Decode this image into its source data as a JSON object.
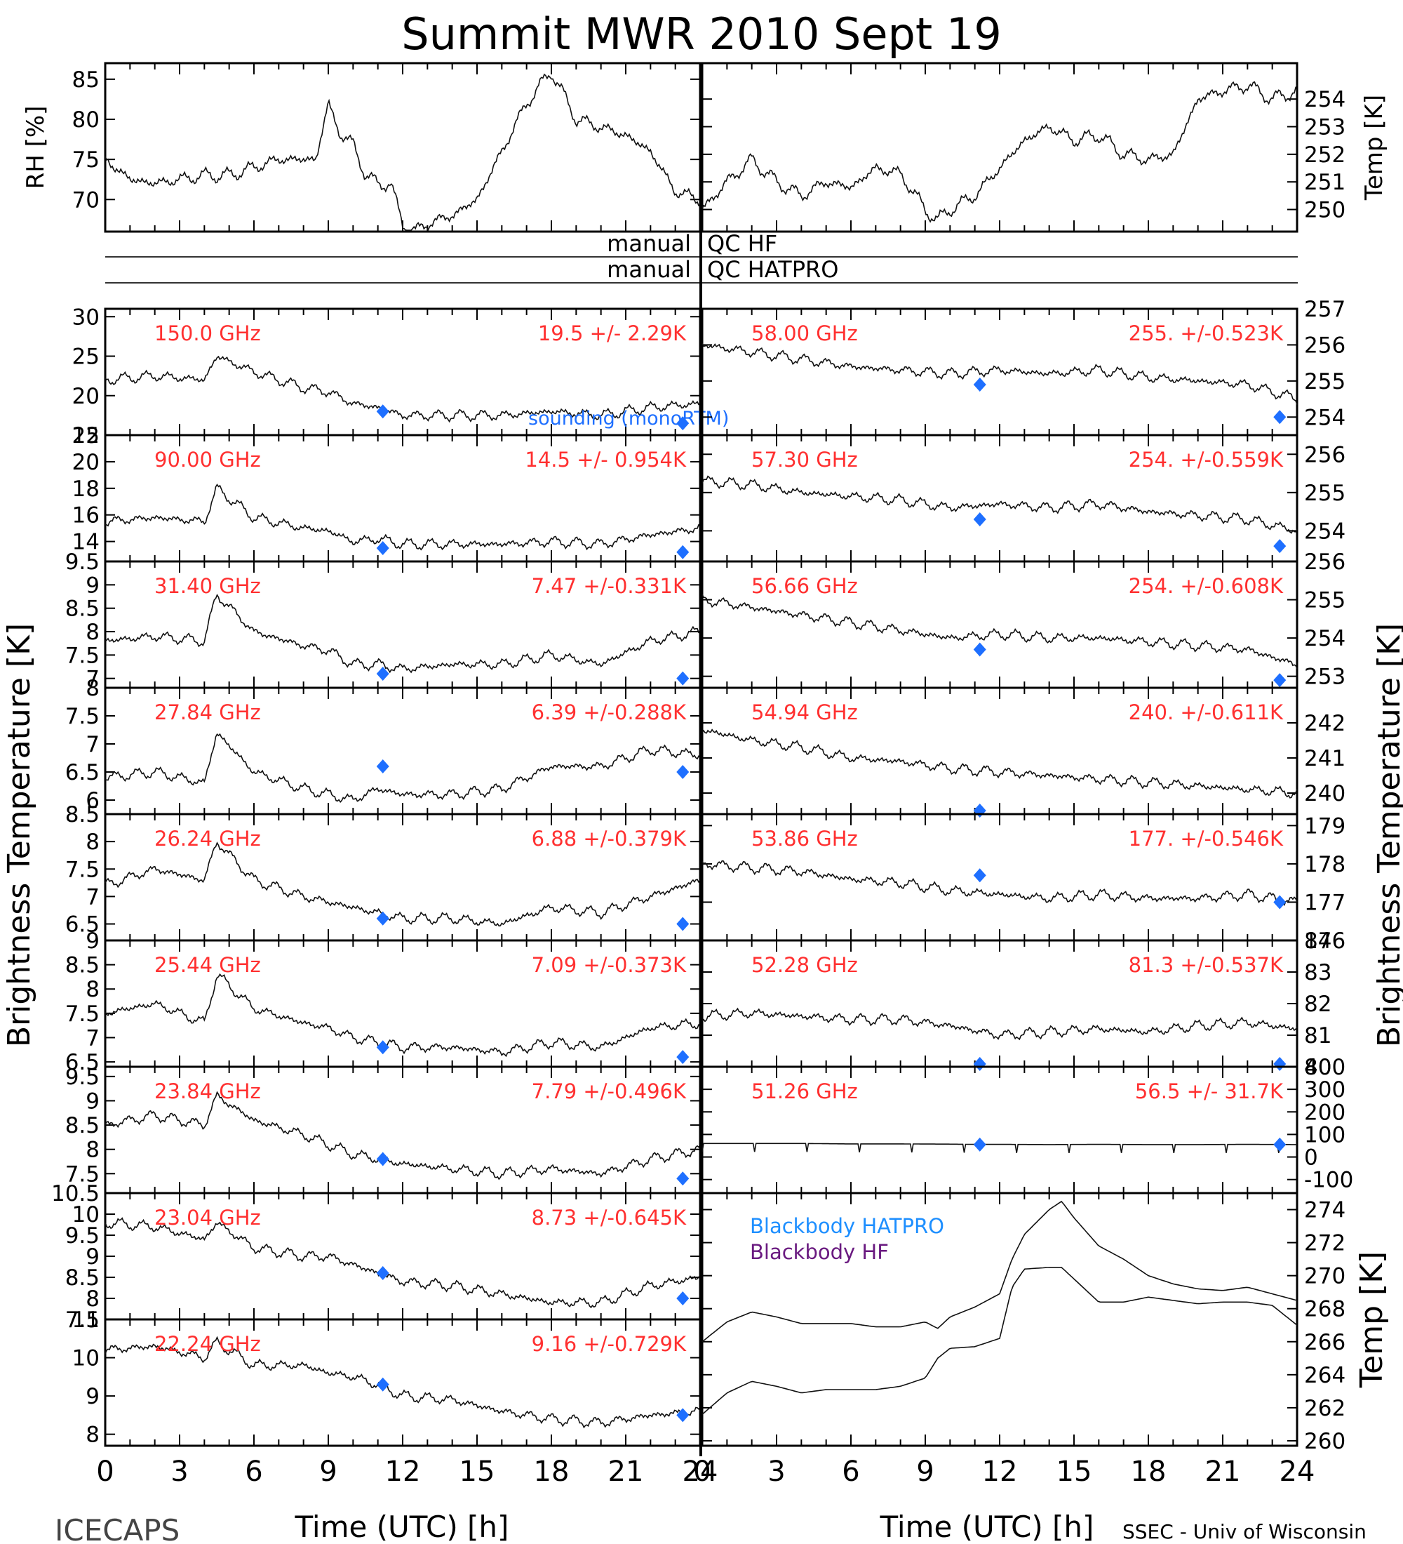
{
  "title": "Summit MWR 2010 Sept 19",
  "left_label": "ICECAPS",
  "right_label": "SSEC - Univ of Wisconsin",
  "xlabel": "Time (UTC) [h]",
  "ylabel_left": "Brightness Temperature [K]",
  "ylabel_right": "Brightness Temperature [K]",
  "qc_rows": [
    {
      "left": "manual",
      "right": "QC HF"
    },
    {
      "left": "manual",
      "right": "QC HATPRO"
    }
  ],
  "colors": {
    "annotation": "#ff3030",
    "marker": "#1e6fff",
    "hatpro": "#1e8fff",
    "hf": "#6a1a80"
  },
  "chart_data": [
    {
      "id": "rh",
      "type": "line",
      "ylabel": "RH [%]",
      "ylim": [
        66,
        87
      ],
      "yticks": [
        70,
        75,
        80,
        85
      ],
      "xlim": [
        0,
        24
      ],
      "x": [
        0,
        1,
        2,
        3,
        4,
        5,
        6,
        7,
        8,
        8.5,
        9,
        9.5,
        10,
        10.5,
        11,
        11.5,
        12,
        12.5,
        13,
        14,
        15,
        16,
        17,
        18,
        19,
        20,
        21,
        22,
        23,
        24
      ],
      "values": [
        75,
        72.5,
        72,
        72.5,
        73,
        73,
        74,
        75,
        75,
        75,
        82,
        78,
        77,
        73,
        72,
        72,
        67,
        66,
        67,
        68,
        70,
        76,
        82,
        86,
        80,
        79,
        78,
        76,
        71,
        70
      ]
    },
    {
      "id": "temp",
      "type": "line",
      "ylabel": "Temp [K]",
      "ylim": [
        249.2,
        255.3
      ],
      "yticks": [
        250,
        251,
        252,
        253,
        254
      ],
      "xlim": [
        0,
        24
      ],
      "x": [
        0,
        1,
        2,
        3,
        4,
        5,
        6,
        7,
        8,
        9,
        9.5,
        10,
        11,
        12,
        13,
        14,
        15,
        16,
        17,
        18,
        19,
        20,
        21,
        22,
        23,
        24
      ],
      "values": [
        250,
        251,
        251.8,
        251,
        250.5,
        251,
        250.8,
        251.5,
        251.3,
        250,
        249.6,
        250,
        250.5,
        251.5,
        252.5,
        253,
        252.5,
        252.7,
        252,
        251.8,
        252,
        254,
        254.3,
        254.5,
        254,
        254.3
      ]
    },
    {
      "id": "150",
      "type": "line",
      "label": "150.0 GHz",
      "stat": "19.5 +/-  2.29K",
      "ylim": [
        15,
        31
      ],
      "yticks": [
        15,
        20,
        25,
        30
      ],
      "xlim": [
        0,
        24
      ],
      "x": [
        0,
        2,
        4,
        4.5,
        6,
        8,
        9,
        10,
        11,
        12,
        14,
        16,
        18,
        20,
        22,
        24
      ],
      "values": [
        22,
        22.5,
        22,
        25,
        23,
        21,
        20.5,
        19,
        18.5,
        17.5,
        17.5,
        17.5,
        18,
        17.5,
        18.5,
        19
      ],
      "model_x": [
        11.2,
        23.3
      ],
      "model_y": [
        18,
        16.5
      ],
      "note": "sounding (monoRTM)"
    },
    {
      "id": "90",
      "type": "line",
      "label": "90.00 GHz",
      "stat": "14.5 +/- 0.954K",
      "ylim": [
        12.5,
        22
      ],
      "yticks": [
        14,
        16,
        18,
        20,
        22
      ],
      "xlim": [
        0,
        24
      ],
      "x": [
        0,
        2,
        4,
        4.5,
        6,
        8,
        9,
        10,
        11,
        12,
        14,
        16,
        18,
        20,
        22,
        24
      ],
      "values": [
        15.5,
        15.8,
        15.5,
        18,
        15.8,
        15,
        14.8,
        14,
        14.2,
        13.8,
        13.8,
        13.8,
        14,
        13.8,
        14.5,
        15
      ],
      "model_x": [
        11.2,
        23.3
      ],
      "model_y": [
        13.5,
        13.2
      ]
    },
    {
      "id": "31",
      "type": "line",
      "label": "31.40 GHz",
      "stat": "7.47 +/-0.331K",
      "ylim": [
        6.8,
        9.5
      ],
      "yticks": [
        7.0,
        7.5,
        8.0,
        8.5,
        9.0,
        9.5
      ],
      "xlim": [
        0,
        24
      ],
      "x": [
        0,
        2,
        4,
        4.5,
        6,
        8,
        9,
        10,
        11,
        12,
        14,
        16,
        18,
        20,
        22,
        24
      ],
      "values": [
        7.8,
        7.9,
        7.8,
        8.8,
        8.0,
        7.7,
        7.6,
        7.3,
        7.3,
        7.2,
        7.3,
        7.3,
        7.5,
        7.3,
        7.8,
        8.0
      ],
      "model_x": [
        11.2,
        23.3
      ],
      "model_y": [
        7.1,
        7.0
      ]
    },
    {
      "id": "27",
      "type": "line",
      "label": "27.84 GHz",
      "stat": "6.39 +/-0.288K",
      "ylim": [
        5.75,
        8.0
      ],
      "yticks": [
        6.0,
        6.5,
        7.0,
        7.5,
        8.0
      ],
      "xlim": [
        0,
        24
      ],
      "x": [
        0,
        2,
        4,
        4.5,
        6,
        8,
        9,
        10,
        11,
        12,
        14,
        16,
        18,
        20,
        22,
        24
      ],
      "values": [
        6.4,
        6.5,
        6.3,
        7.2,
        6.5,
        6.2,
        6.1,
        6.0,
        6.2,
        6.1,
        6.1,
        6.2,
        6.6,
        6.6,
        6.9,
        6.8
      ],
      "model_x": [
        11.2,
        23.3
      ],
      "model_y": [
        6.6,
        6.5
      ]
    },
    {
      "id": "26",
      "type": "line",
      "label": "26.24 GHz",
      "stat": "6.88 +/-0.379K",
      "ylim": [
        6.2,
        8.5
      ],
      "yticks": [
        6.5,
        7.0,
        7.5,
        8.0,
        8.5
      ],
      "xlim": [
        0,
        24
      ],
      "x": [
        0,
        2,
        4,
        4.5,
        6,
        8,
        9,
        10,
        11,
        12,
        14,
        16,
        18,
        20,
        22,
        24
      ],
      "values": [
        7.2,
        7.5,
        7.3,
        8.0,
        7.3,
        7.0,
        6.9,
        6.8,
        6.7,
        6.6,
        6.6,
        6.5,
        6.8,
        6.7,
        7.0,
        7.3
      ],
      "model_x": [
        11.2,
        23.3
      ],
      "model_y": [
        6.6,
        6.5
      ]
    },
    {
      "id": "25",
      "type": "line",
      "label": "25.44 GHz",
      "stat": "7.09 +/-0.373K",
      "ylim": [
        6.4,
        9.0
      ],
      "yticks": [
        6.5,
        7.0,
        7.5,
        8.0,
        8.5,
        9.0
      ],
      "xlim": [
        0,
        24
      ],
      "x": [
        0,
        2,
        4,
        4.5,
        6,
        8,
        9,
        10,
        11,
        12,
        14,
        16,
        18,
        20,
        22,
        24
      ],
      "values": [
        7.5,
        7.7,
        7.3,
        8.3,
        7.6,
        7.3,
        7.2,
        7.0,
        6.9,
        6.8,
        6.8,
        6.7,
        6.9,
        6.8,
        7.2,
        7.3
      ],
      "model_x": [
        11.2,
        23.3
      ],
      "model_y": [
        6.8,
        6.6
      ]
    },
    {
      "id": "23.84",
      "type": "line",
      "label": "23.84 GHz",
      "stat": "7.79 +/-0.496K",
      "ylim": [
        7.1,
        9.7
      ],
      "yticks": [
        7.5,
        8.0,
        8.5,
        9.0,
        9.5
      ],
      "xlim": [
        0,
        24
      ],
      "x": [
        0,
        2,
        4,
        4.5,
        6,
        8,
        9,
        10,
        11,
        12,
        14,
        16,
        18,
        20,
        22,
        24
      ],
      "values": [
        8.5,
        8.7,
        8.5,
        9.1,
        8.6,
        8.3,
        8.1,
        7.9,
        7.8,
        7.7,
        7.6,
        7.5,
        7.6,
        7.5,
        7.8,
        8.0
      ],
      "model_x": [
        11.2,
        23.3
      ],
      "model_y": [
        7.8,
        7.4
      ]
    },
    {
      "id": "23.04",
      "type": "line",
      "label": "23.04 GHz",
      "stat": "8.73 +/-0.645K",
      "ylim": [
        7.5,
        10.5
      ],
      "yticks": [
        7.5,
        8.0,
        8.5,
        9.0,
        9.5,
        10.0,
        10.5
      ],
      "xlim": [
        0,
        24
      ],
      "x": [
        0,
        2,
        4,
        4.5,
        6,
        8,
        9,
        10,
        11,
        12,
        14,
        16,
        18,
        20,
        22,
        24
      ],
      "values": [
        9.8,
        9.7,
        9.4,
        9.8,
        9.2,
        9.0,
        9.0,
        8.8,
        8.6,
        8.4,
        8.3,
        8.1,
        7.9,
        7.9,
        8.3,
        8.5
      ],
      "model_x": [
        11.2,
        23.3
      ],
      "model_y": [
        8.6,
        8.0
      ]
    },
    {
      "id": "22",
      "type": "line",
      "label": "22.24 GHz",
      "stat": "9.16 +/-0.729K",
      "ylim": [
        7.7,
        11
      ],
      "yticks": [
        8,
        9,
        10,
        11
      ],
      "xlim": [
        0,
        24
      ],
      "x": [
        0,
        2,
        4,
        4.5,
        6,
        8,
        9,
        10,
        11,
        12,
        14,
        16,
        18,
        20,
        22,
        24
      ],
      "values": [
        10.2,
        10.3,
        10.0,
        10.4,
        9.8,
        9.8,
        9.6,
        9.5,
        9.3,
        9.0,
        8.9,
        8.6,
        8.4,
        8.3,
        8.5,
        8.6
      ],
      "model_x": [
        11.2,
        23.3
      ],
      "model_y": [
        9.3,
        8.5
      ]
    },
    {
      "id": "58",
      "type": "line",
      "label": "58.00 GHz",
      "stat": "255. +/-0.523K",
      "ylim": [
        253.5,
        257
      ],
      "yticks": [
        254,
        255,
        256,
        257
      ],
      "xlim": [
        0,
        24
      ],
      "x": [
        0,
        2,
        4,
        6,
        8,
        10,
        12,
        14,
        16,
        18,
        20,
        22,
        24
      ],
      "values": [
        256,
        255.8,
        255.6,
        255.4,
        255.3,
        255.2,
        255.3,
        255.2,
        255.3,
        255.1,
        255.0,
        254.9,
        254.5
      ],
      "model_x": [
        11.2,
        23.3
      ],
      "model_y": [
        254.9,
        254
      ]
    },
    {
      "id": "57",
      "type": "line",
      "label": "57.30 GHz",
      "stat": "254. +/-0.559K",
      "ylim": [
        253.2,
        256.5
      ],
      "yticks": [
        254,
        255,
        256
      ],
      "xlim": [
        0,
        24
      ],
      "x": [
        0,
        2,
        4,
        6,
        8,
        10,
        12,
        14,
        16,
        18,
        20,
        22,
        24
      ],
      "values": [
        255.3,
        255.2,
        255.0,
        254.9,
        254.8,
        254.6,
        254.7,
        254.6,
        254.7,
        254.5,
        254.4,
        254.3,
        254.0
      ],
      "model_x": [
        11.2,
        23.3
      ],
      "model_y": [
        254.3,
        253.6
      ]
    },
    {
      "id": "56",
      "type": "line",
      "label": "56.66 GHz",
      "stat": "254. +/-0.608K",
      "ylim": [
        252.7,
        256
      ],
      "yticks": [
        253,
        254,
        255,
        256
      ],
      "xlim": [
        0,
        24
      ],
      "x": [
        0,
        2,
        4,
        6,
        8,
        10,
        12,
        14,
        16,
        18,
        20,
        22,
        24
      ],
      "values": [
        255.0,
        254.8,
        254.6,
        254.4,
        254.2,
        254.0,
        254.1,
        254.0,
        254.0,
        253.9,
        253.8,
        253.7,
        253.3
      ],
      "model_x": [
        11.2,
        23.3
      ],
      "model_y": [
        253.7,
        252.9
      ]
    },
    {
      "id": "54",
      "type": "line",
      "label": "54.94 GHz",
      "stat": "240. +/-0.611K",
      "ylim": [
        239.4,
        243
      ],
      "yticks": [
        240,
        241,
        242
      ],
      "xlim": [
        0,
        24
      ],
      "x": [
        0,
        2,
        4,
        6,
        8,
        10,
        12,
        14,
        16,
        18,
        20,
        22,
        24
      ],
      "values": [
        241.8,
        241.5,
        241.3,
        241.0,
        240.9,
        240.7,
        240.6,
        240.5,
        240.4,
        240.3,
        240.2,
        240.1,
        240.0
      ],
      "model_x": [
        11.2
      ],
      "model_y": [
        239.5
      ]
    },
    {
      "id": "53",
      "type": "line",
      "label": "53.86 GHz",
      "stat": "177. +/-0.546K",
      "ylim": [
        176,
        179.3
      ],
      "yticks": [
        176,
        177,
        178,
        179
      ],
      "xlim": [
        0,
        24
      ],
      "x": [
        0,
        2,
        4,
        6,
        8,
        10,
        12,
        14,
        16,
        18,
        20,
        22,
        24
      ],
      "values": [
        178.0,
        177.9,
        177.8,
        177.6,
        177.5,
        177.3,
        177.2,
        177.1,
        177.2,
        177.1,
        177.1,
        177.2,
        177.0
      ],
      "model_x": [
        11.2,
        23.3
      ],
      "model_y": [
        177.7,
        177.0
      ]
    },
    {
      "id": "52",
      "type": "line",
      "label": "52.28 GHz",
      "stat": "81.3 +/-0.537K",
      "ylim": [
        80,
        84
      ],
      "yticks": [
        80,
        81,
        82,
        83,
        84
      ],
      "xlim": [
        0,
        24
      ],
      "x": [
        0,
        2,
        4,
        6,
        8,
        10,
        12,
        14,
        16,
        18,
        20,
        22,
        24
      ],
      "values": [
        81.6,
        81.7,
        81.6,
        81.5,
        81.5,
        81.3,
        81.0,
        81.1,
        81.2,
        81.1,
        81.3,
        81.4,
        81.2
      ],
      "model_x": [
        11.2,
        23.3
      ],
      "model_y": [
        80.0,
        80.0
      ]
    },
    {
      "id": "51",
      "type": "line",
      "label": "51.26 GHz",
      "stat": "56.5 +/- 31.7K",
      "ylim": [
        -160,
        400
      ],
      "yticks": [
        -100,
        0,
        100,
        200,
        300,
        400
      ],
      "xlim": [
        0,
        24
      ],
      "x": [
        0,
        2,
        4,
        6,
        8,
        10,
        11,
        12,
        14,
        16,
        18,
        20,
        22,
        24
      ],
      "values": [
        60,
        60,
        60,
        58,
        58,
        57,
        56,
        56,
        55,
        56,
        55,
        55,
        56,
        55
      ],
      "model_x": [
        11.2,
        23.3
      ],
      "model_y": [
        55,
        55
      ]
    },
    {
      "id": "bb",
      "type": "line",
      "ylabel": "Temp [K]",
      "ylim": [
        259.7,
        275
      ],
      "yticks": [
        260,
        262,
        264,
        266,
        268,
        270,
        272,
        274
      ],
      "xlim": [
        0,
        24
      ],
      "series": [
        {
          "name": "Blackbody HATPRO",
          "x": [
            0,
            1,
            2,
            3,
            4,
            5,
            6,
            7,
            8,
            9,
            9.5,
            10,
            11,
            12,
            12.5,
            13,
            14,
            14.5,
            15,
            16,
            17,
            18,
            19,
            20,
            21,
            22,
            23,
            24
          ],
          "values": [
            266,
            267.2,
            267.8,
            267.5,
            267.1,
            267.1,
            267.1,
            266.9,
            266.9,
            267.2,
            266.8,
            267.5,
            268.1,
            268.9,
            271,
            272.5,
            274,
            274.5,
            273.5,
            271.8,
            271,
            270,
            269.5,
            269.2,
            269.1,
            269.3,
            268.9,
            268.5
          ]
        },
        {
          "name": "Blackbody HF",
          "x": [
            0,
            1,
            2,
            3,
            4,
            5,
            6,
            7,
            8,
            9,
            9.5,
            10,
            11,
            12,
            12.5,
            13,
            14,
            14.5,
            15,
            16,
            17,
            18,
            19,
            20,
            21,
            22,
            23,
            24
          ],
          "values": [
            261.6,
            262.9,
            263.6,
            263.3,
            262.9,
            263.1,
            263.1,
            263.1,
            263.3,
            263.8,
            265.0,
            265.6,
            265.7,
            266.2,
            269.3,
            270.4,
            270.5,
            270.5,
            269.8,
            268.4,
            268.4,
            268.7,
            268.5,
            268.3,
            268.4,
            268.4,
            268.2,
            267.0
          ]
        }
      ]
    }
  ],
  "xticks": [
    "0",
    "3",
    "6",
    "9",
    "12",
    "15",
    "18",
    "21",
    "24"
  ]
}
